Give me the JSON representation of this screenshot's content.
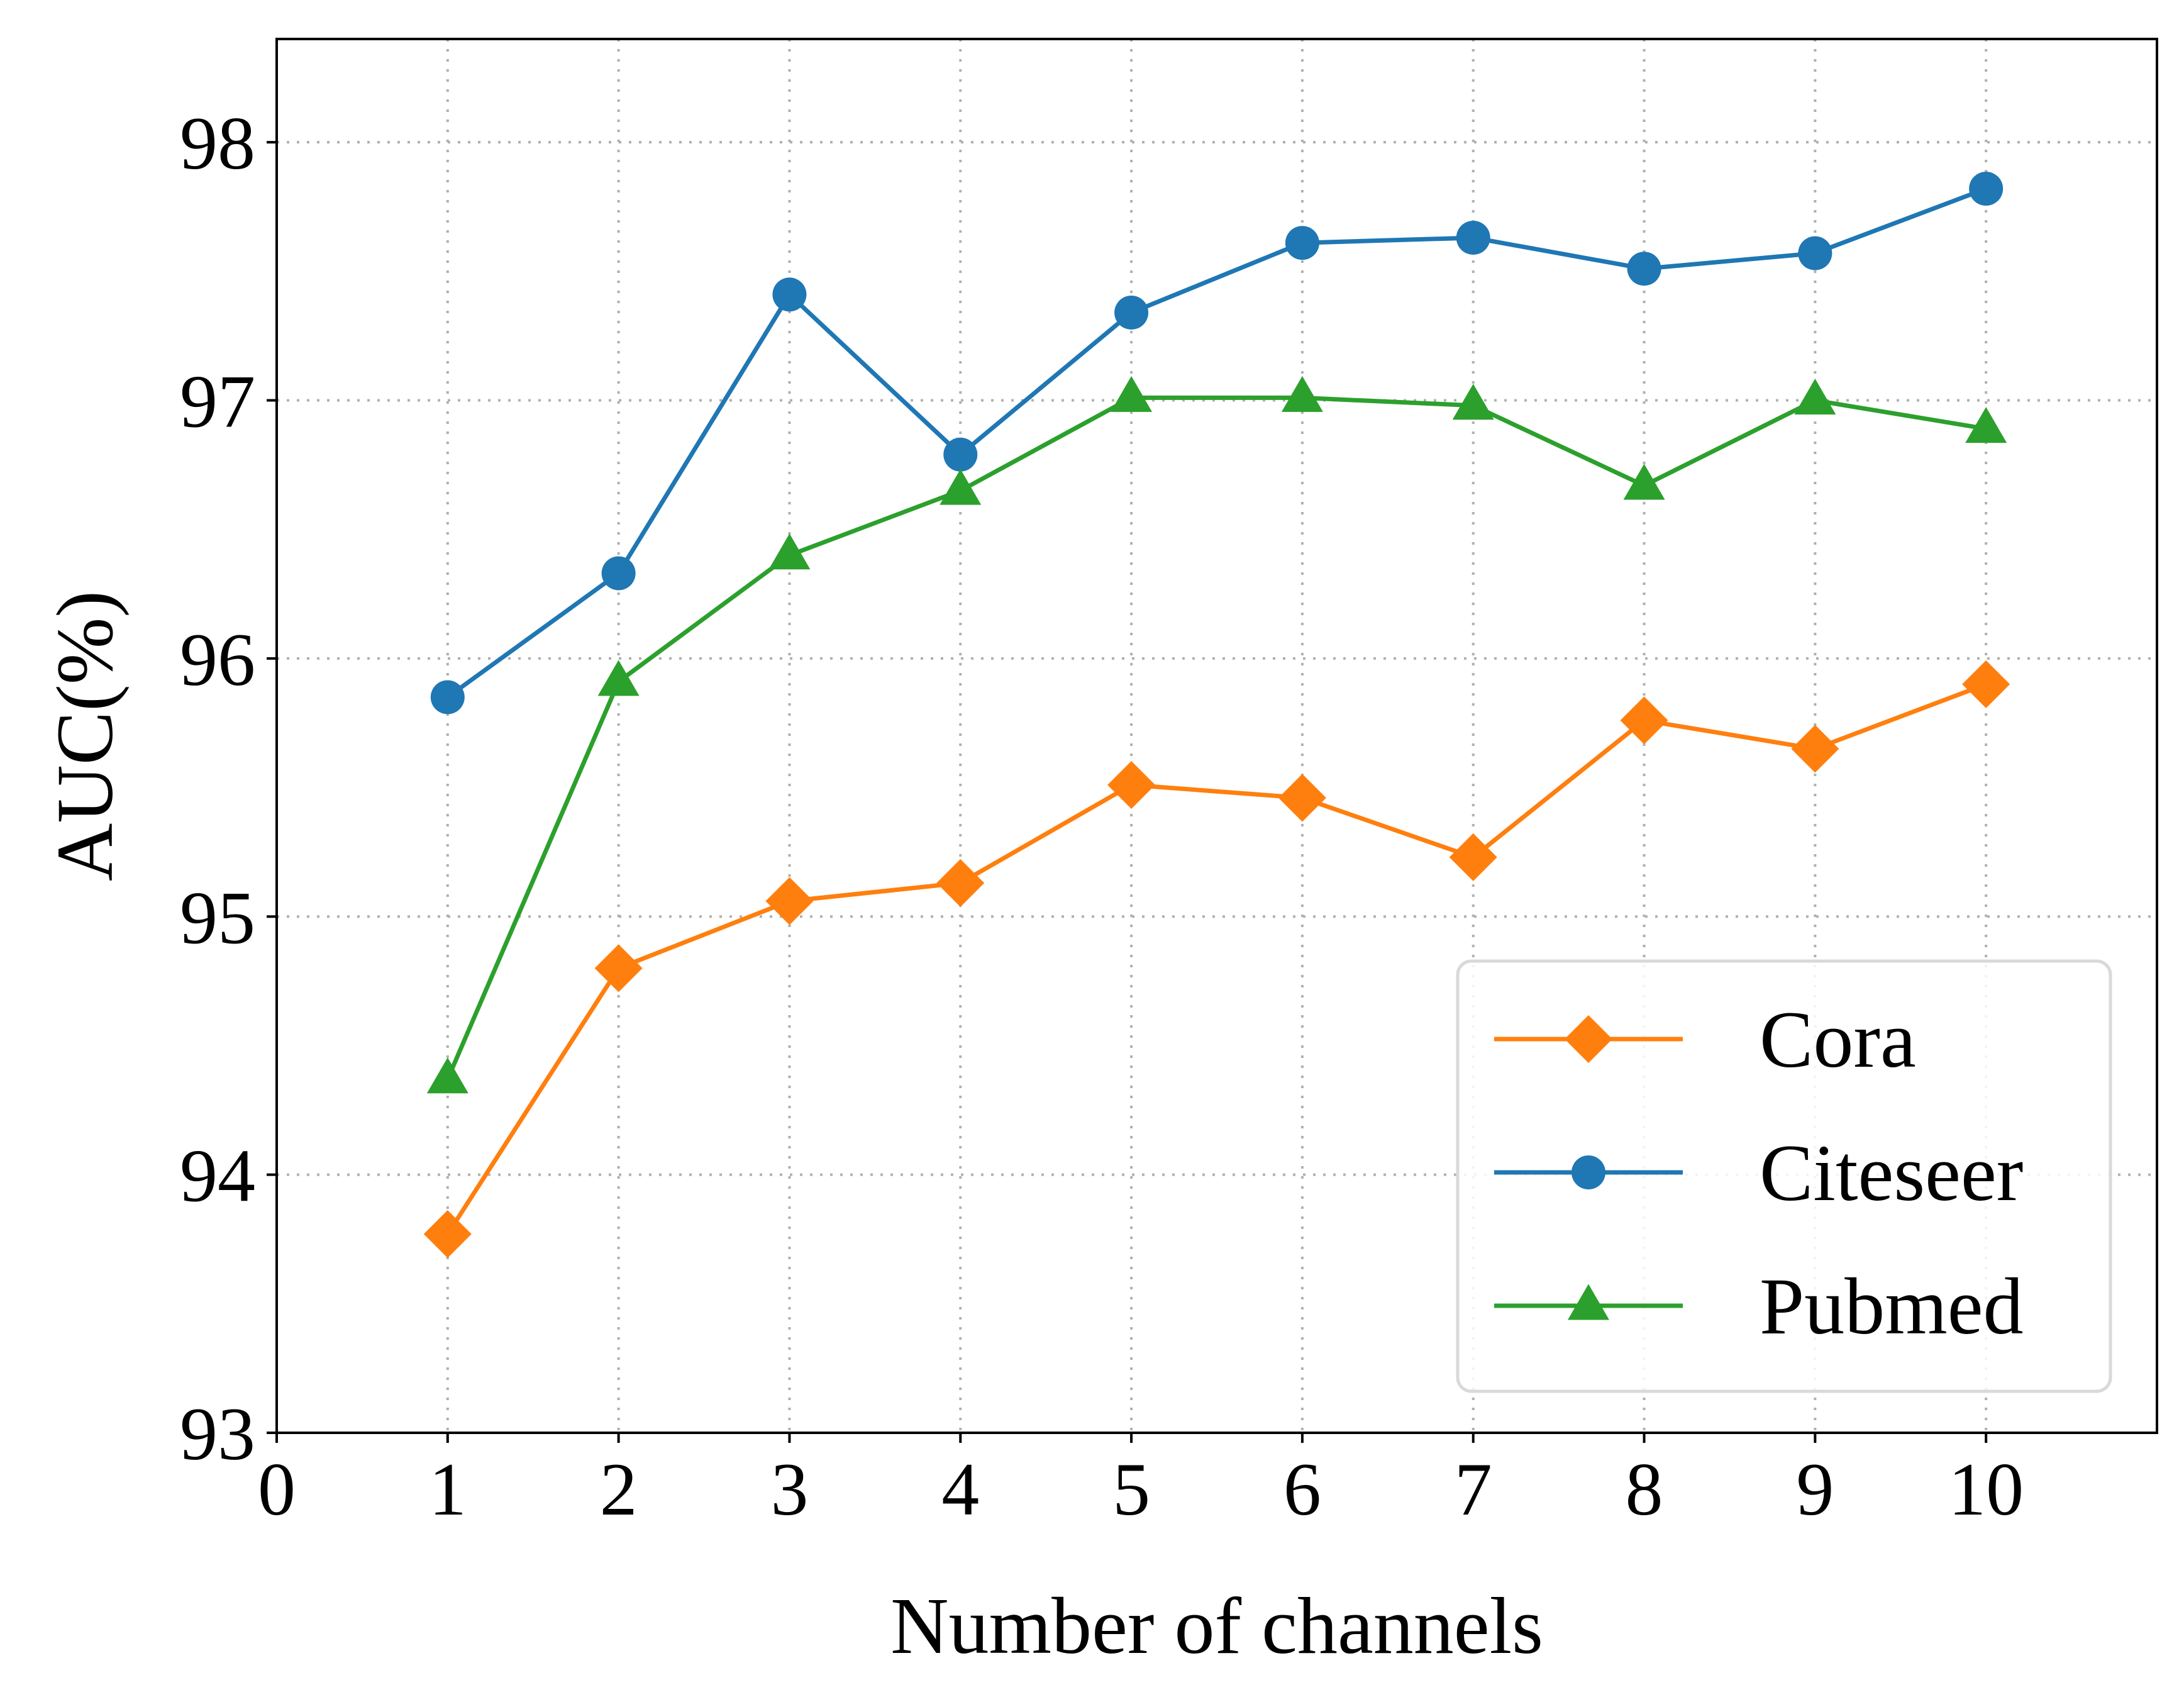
{
  "chart_data": {
    "type": "line",
    "title": "",
    "xlabel": "Number of channels",
    "ylabel": "AUC(%)",
    "xlim": [
      0,
      11
    ],
    "ylim": [
      93,
      98.4
    ],
    "x_ticks": [
      0,
      1,
      2,
      3,
      4,
      5,
      6,
      7,
      8,
      9,
      10
    ],
    "y_ticks": [
      93,
      94,
      95,
      96,
      97,
      98
    ],
    "grid": true,
    "legend_position": "lower-right",
    "x": [
      1,
      2,
      3,
      4,
      5,
      6,
      7,
      8,
      9,
      10
    ],
    "series": [
      {
        "name": "Cora",
        "color": "#ff7f0e",
        "marker": "diamond",
        "values": [
          93.77,
          94.8,
          95.06,
          95.13,
          95.51,
          95.46,
          95.23,
          95.76,
          95.65,
          95.9
        ]
      },
      {
        "name": "Citeseer",
        "color": "#1f77b4",
        "marker": "circle",
        "values": [
          95.85,
          96.33,
          97.41,
          96.79,
          97.34,
          97.61,
          97.63,
          97.51,
          97.57,
          97.82
        ]
      },
      {
        "name": "Pubmed",
        "color": "#2ca02c",
        "marker": "triangle",
        "values": [
          94.37,
          95.91,
          96.4,
          96.65,
          97.01,
          97.01,
          96.98,
          96.67,
          97.0,
          96.89
        ]
      }
    ]
  }
}
